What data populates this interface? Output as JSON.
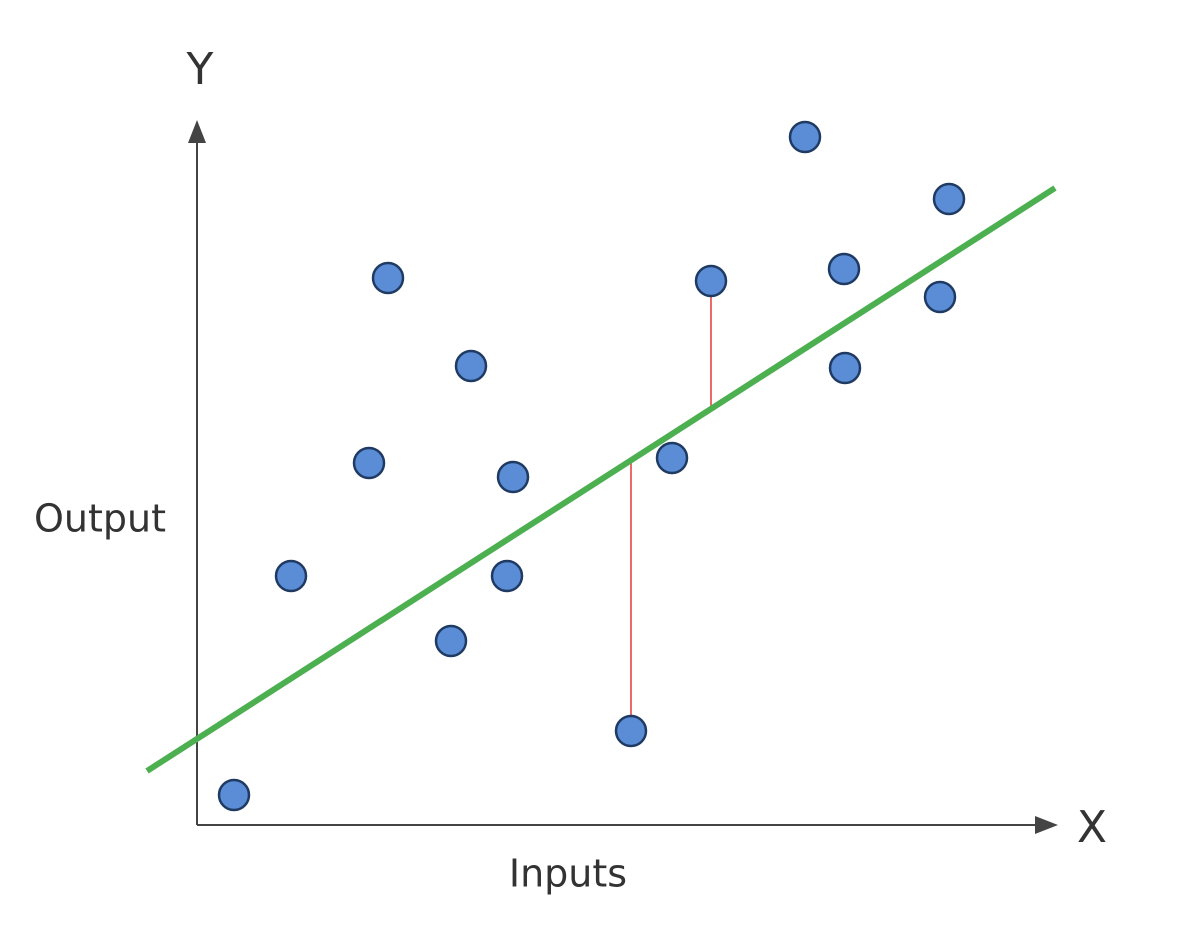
{
  "axes": {
    "y_symbol": "Y",
    "x_symbol": "X",
    "y_label": "Output",
    "x_label": "Inputs"
  }
}
